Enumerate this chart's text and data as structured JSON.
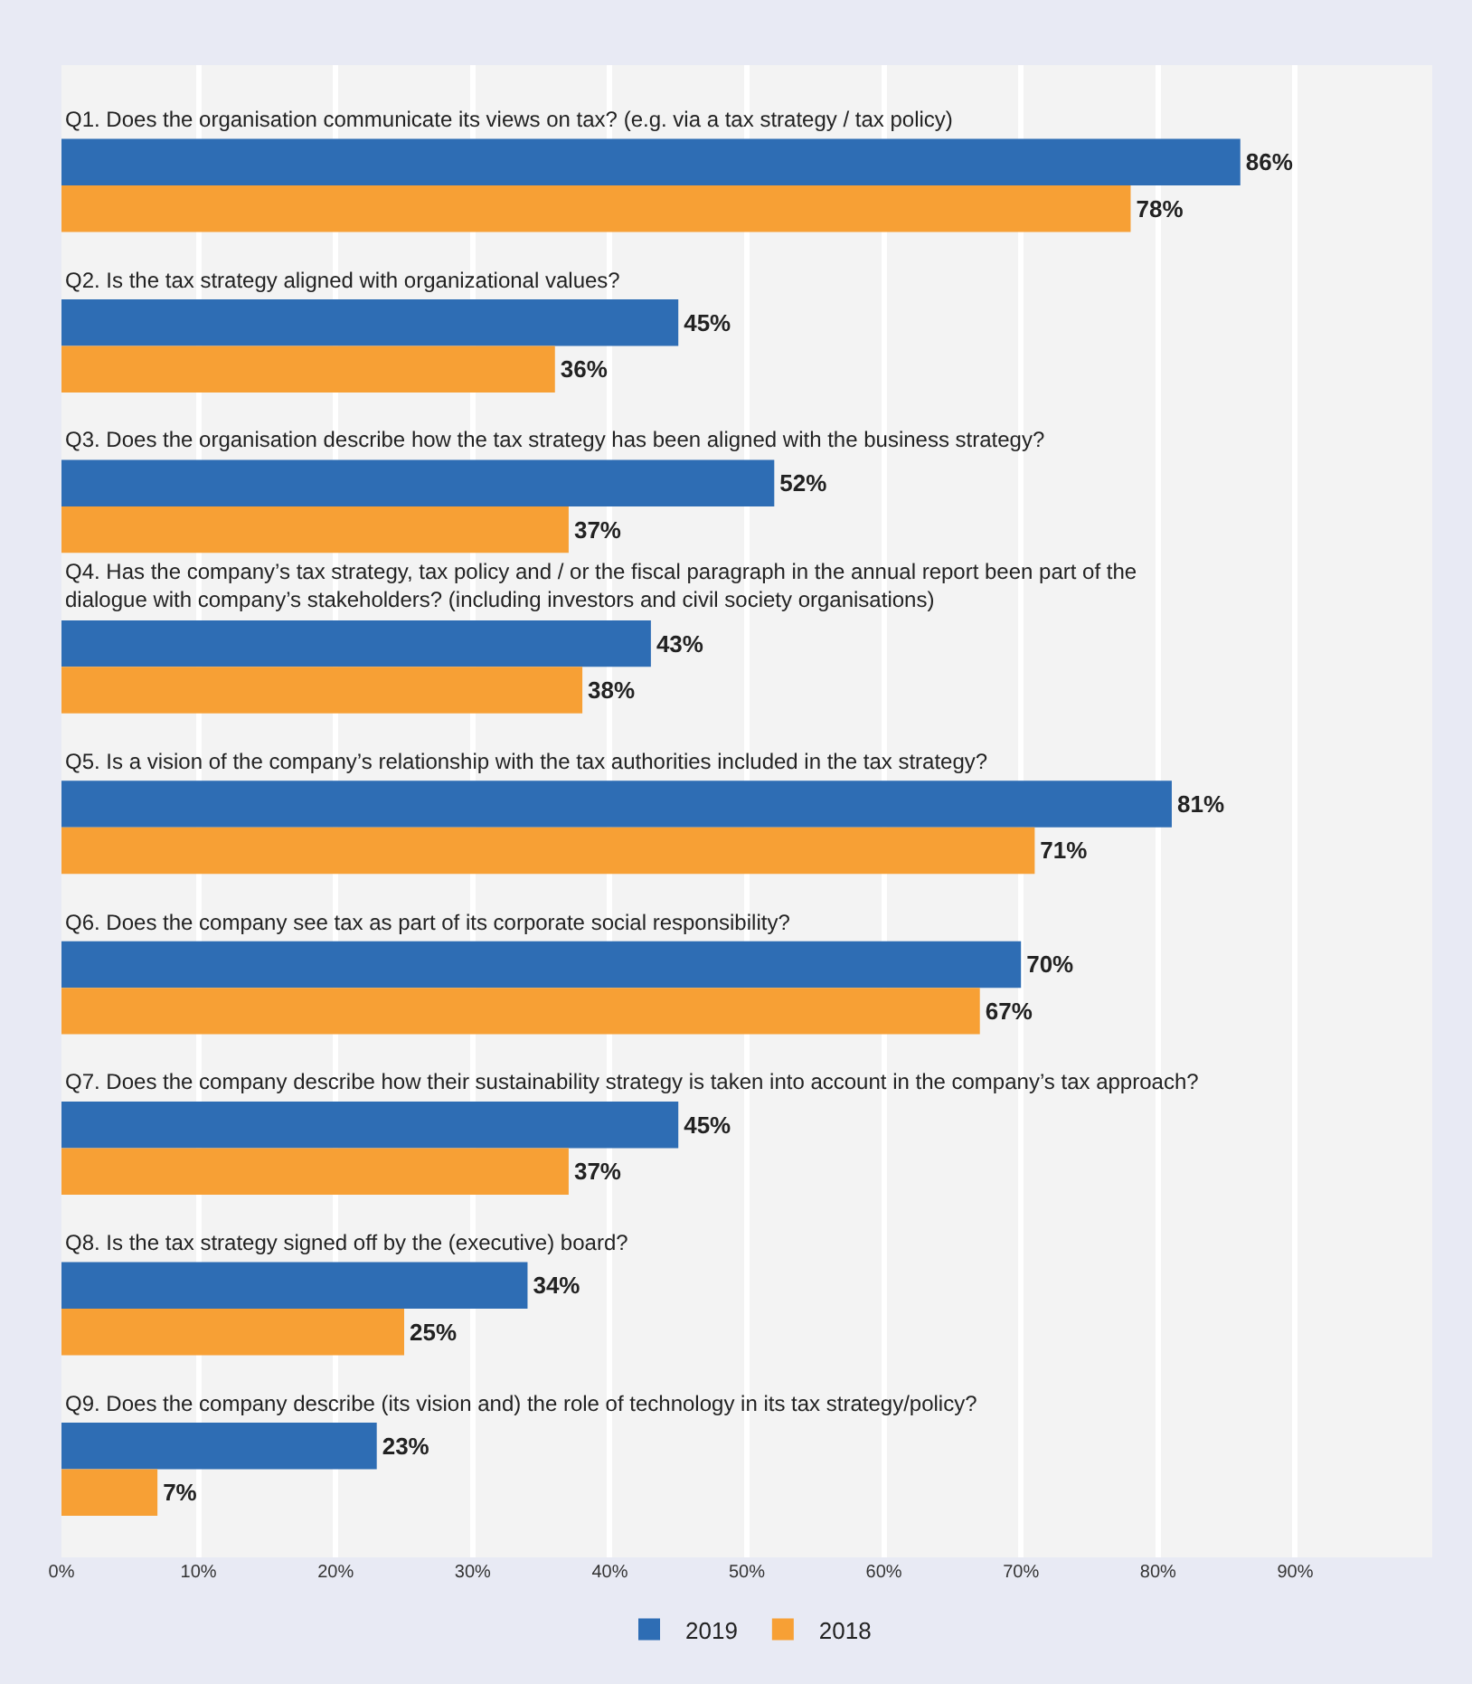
{
  "chart_data": {
    "type": "bar",
    "orientation": "horizontal",
    "categories": [
      "Q1. Does the organisation communicate its views on tax? (e.g. via a tax strategy / tax policy)",
      "Q2. Is the tax strategy aligned with organizational values?",
      "Q3. Does the organisation describe how the tax strategy has been aligned with the business strategy?",
      "Q4. Has the company’s tax strategy, tax policy and / or the fiscal paragraph in the annual report been part of the dialogue with company’s stakeholders? (including investors and civil society organisations)",
      "Q5. Is a vision of the company’s relationship with the tax authorities included in the tax strategy?",
      "Q6. Does the company see tax as part of its corporate social responsibility?",
      "Q7. Does the company describe how their sustainability strategy is taken into account in the company’s tax approach?",
      "Q8. Is the tax strategy signed off by the (executive) board?",
      "Q9. Does the company describe (its vision and) the role of technology in its tax strategy/policy?"
    ],
    "series": [
      {
        "name": "2019",
        "color": "#2e6db4",
        "values": [
          86,
          45,
          52,
          43,
          81,
          70,
          45,
          34,
          23
        ],
        "value_labels": [
          "86%",
          "45%",
          "52%",
          "43%",
          "81%",
          "70%",
          "45%",
          "34%",
          "23%"
        ]
      },
      {
        "name": "2018",
        "color": "#f7a035",
        "values": [
          78,
          36,
          37,
          38,
          71,
          67,
          37,
          25,
          7
        ],
        "value_labels": [
          "78%",
          "36%",
          "37%",
          "38%",
          "71%",
          "67%",
          "37%",
          "25%",
          "7%"
        ]
      }
    ],
    "xlim": [
      0,
      100
    ],
    "xticks": [
      {
        "value": 0,
        "label": "0%"
      },
      {
        "value": 10,
        "label": "10%"
      },
      {
        "value": 20,
        "label": "20%"
      },
      {
        "value": 30,
        "label": "30%"
      },
      {
        "value": 40,
        "label": "40%"
      },
      {
        "value": 50,
        "label": "50%"
      },
      {
        "value": 60,
        "label": "60%"
      },
      {
        "value": 70,
        "label": "70%"
      },
      {
        "value": 80,
        "label": "80%"
      },
      {
        "value": 90,
        "label": "90%"
      }
    ],
    "grid": "x",
    "legend": "bottom"
  }
}
